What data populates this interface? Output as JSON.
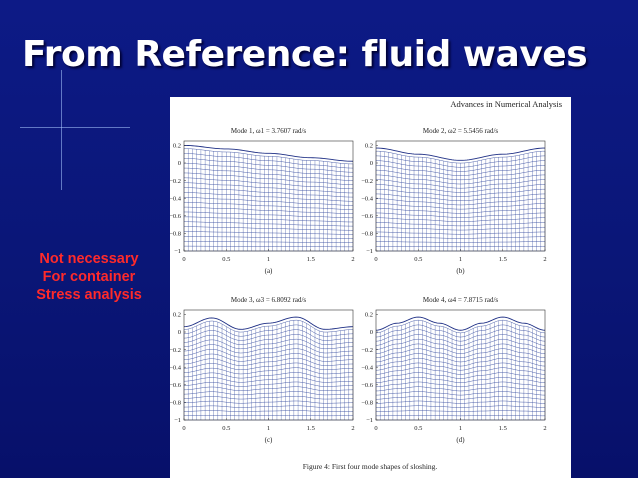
{
  "slide": {
    "title": "From Reference: fluid waves",
    "note_lines": [
      "Not necessary",
      "For container",
      "Stress analysis"
    ],
    "colors": {
      "background": "#0b1679",
      "title": "#ffffff",
      "note": "#ff2a2a",
      "mesh": "#3a4fa0"
    }
  },
  "figure": {
    "journal_header": "Advances in Numerical Analysis",
    "caption": "Figure 4: First four mode shapes of sloshing."
  },
  "chart_data": [
    {
      "type": "line",
      "panel": "(a)",
      "title": "Mode 1, ω1 = 3.7607 rad/s",
      "xlim": [
        0,
        2
      ],
      "ylim": [
        -1,
        0.25
      ],
      "xticks": [
        "0",
        "0.5",
        "1",
        "1.5",
        "2"
      ],
      "yticks": [
        "0.2",
        "0",
        "−0.2",
        "−0.4",
        "−0.6",
        "−0.8",
        "−1"
      ],
      "free_surface": {
        "x": [
          0,
          0.5,
          1,
          1.5,
          2
        ],
        "y": [
          0.2,
          0.16,
          0.11,
          0.06,
          0.02
        ]
      },
      "mesh": {
        "columns": 41,
        "rows": 21
      }
    },
    {
      "type": "line",
      "panel": "(b)",
      "title": "Mode 2, ω2 = 5.5456 rad/s",
      "xlim": [
        0,
        2
      ],
      "ylim": [
        -1,
        0.25
      ],
      "xticks": [
        "0",
        "0.5",
        "1",
        "1.5",
        "2"
      ],
      "yticks": [
        "0.2",
        "0",
        "−0.2",
        "−0.4",
        "−0.6",
        "−0.8",
        "−1"
      ],
      "free_surface": {
        "x": [
          0,
          0.5,
          1,
          1.5,
          2
        ],
        "y": [
          0.17,
          0.1,
          0.03,
          0.1,
          0.17
        ]
      },
      "mesh": {
        "columns": 41,
        "rows": 21
      }
    },
    {
      "type": "line",
      "panel": "(c)",
      "title": "Mode 3, ω3 = 6.8092 rad/s",
      "xlim": [
        0,
        2
      ],
      "ylim": [
        -1,
        0.25
      ],
      "xticks": [
        "0",
        "0.5",
        "1",
        "1.5",
        "2"
      ],
      "yticks": [
        "0.2",
        "0",
        "−0.2",
        "−0.4",
        "−0.6",
        "−0.8",
        "−1"
      ],
      "free_surface": {
        "x": [
          0,
          0.33,
          0.67,
          1,
          1.33,
          1.67,
          2
        ],
        "y": [
          0.06,
          0.16,
          0.03,
          0.1,
          0.17,
          0.03,
          0.06
        ]
      },
      "mesh": {
        "columns": 41,
        "rows": 21
      }
    },
    {
      "type": "line",
      "panel": "(d)",
      "title": "Mode 4, ω4 = 7.8715 rad/s",
      "xlim": [
        0,
        2
      ],
      "ylim": [
        -1,
        0.25
      ],
      "xticks": [
        "0",
        "0.5",
        "1",
        "1.5",
        "2"
      ],
      "yticks": [
        "0.2",
        "0",
        "−0.2",
        "−0.4",
        "−0.6",
        "−0.8",
        "−1"
      ],
      "free_surface": {
        "x": [
          0,
          0.25,
          0.5,
          0.75,
          1,
          1.25,
          1.5,
          1.75,
          2
        ],
        "y": [
          0.02,
          0.1,
          0.17,
          0.1,
          0.02,
          0.1,
          0.17,
          0.1,
          0.02
        ]
      },
      "mesh": {
        "columns": 41,
        "rows": 21
      }
    }
  ]
}
